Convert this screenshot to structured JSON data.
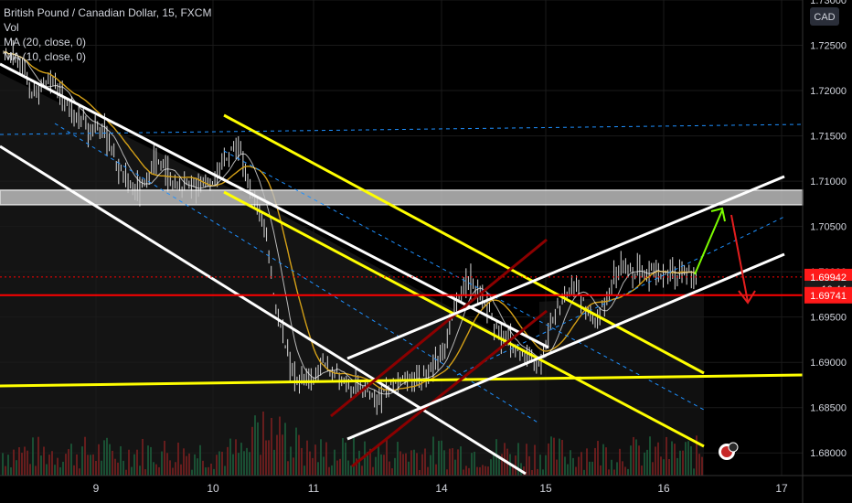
{
  "legend": {
    "title": "British Pound / Canadian Dollar, 15, FXCM",
    "vol": "Vol",
    "ma20": "MA (20, close, 0)",
    "ma10": "MA (10, close, 0)"
  },
  "currency": "CAD",
  "colors": {
    "background": "#000000",
    "text": "#d1d4dc",
    "grid": "#1a1a1a",
    "candle": "#d8d8d8",
    "ma20": "#d4a017",
    "ma10": "#ffffff",
    "yellow": "#ffff00",
    "white": "#ffffff",
    "darkred": "#8b0000",
    "red": "#ff0000",
    "dashed_blue": "#1e90ff",
    "green_arrow": "#7cfc00",
    "red_arrow": "#e41e1e",
    "label_red": "#ff1a1a",
    "volume_green": "#1b5e3b",
    "volume_red": "#7a1f1f"
  },
  "chart_data": {
    "type": "candlestick",
    "symbol": "GBP/CAD",
    "timeframe": "15",
    "ylim": [
      1.6775,
      1.73
    ],
    "y_ticks": [
      "1.73000",
      "1.72500",
      "1.72000",
      "1.71500",
      "1.71000",
      "1.70500",
      "1.70000",
      "1.69500",
      "1.69000",
      "1.68500",
      "1.68000"
    ],
    "x_ticks": [
      "9",
      "10",
      "11",
      "14",
      "15",
      "16",
      "17"
    ],
    "price_labels": [
      {
        "text": "1.69942",
        "value": 1.69942,
        "color": "#ff1a1a"
      },
      {
        "text": "10:44",
        "value": 1.6981,
        "color": "#1a1a1a"
      },
      {
        "text": "1.69741",
        "value": 1.69741,
        "color": "#ff1a1a"
      }
    ],
    "close_path": [
      [
        0,
        1.7245
      ],
      [
        1,
        1.724
      ],
      [
        2,
        1.722
      ],
      [
        3,
        1.7195
      ],
      [
        4,
        1.7205
      ],
      [
        5,
        1.7215
      ],
      [
        6,
        1.7195
      ],
      [
        7,
        1.718
      ],
      [
        8,
        1.717
      ],
      [
        9,
        1.716
      ],
      [
        10,
        1.7165
      ],
      [
        11,
        1.7145
      ],
      [
        12,
        1.712
      ],
      [
        13,
        1.71
      ],
      [
        14,
        1.709
      ],
      [
        15,
        1.7095
      ],
      [
        16,
        1.712
      ],
      [
        17,
        1.7115
      ],
      [
        18,
        1.71
      ],
      [
        19,
        1.709
      ],
      [
        20,
        1.7092
      ],
      [
        21,
        1.7095
      ],
      [
        22,
        1.71
      ],
      [
        23,
        1.711
      ],
      [
        24,
        1.7135
      ],
      [
        25,
        1.714
      ],
      [
        26,
        1.71
      ],
      [
        27,
        1.707
      ],
      [
        28,
        1.704
      ],
      [
        29,
        1.696
      ],
      [
        30,
        1.692
      ],
      [
        31,
        1.688
      ],
      [
        32,
        1.6885
      ],
      [
        33,
        1.688
      ],
      [
        34,
        1.69
      ],
      [
        35,
        1.689
      ],
      [
        36,
        1.688
      ],
      [
        37,
        1.687
      ],
      [
        38,
        1.6875
      ],
      [
        39,
        1.6865
      ],
      [
        40,
        1.686
      ],
      [
        41,
        1.6875
      ],
      [
        42,
        1.688
      ],
      [
        43,
        1.6878
      ],
      [
        44,
        1.6882
      ],
      [
        45,
        1.6885
      ],
      [
        46,
        1.69
      ],
      [
        47,
        1.692
      ],
      [
        48,
        1.696
      ],
      [
        49,
        1.698
      ],
      [
        50,
        1.699
      ],
      [
        51,
        1.697
      ],
      [
        52,
        1.695
      ],
      [
        53,
        1.693
      ],
      [
        54,
        1.692
      ],
      [
        55,
        1.691
      ],
      [
        56,
        1.6905
      ],
      [
        57,
        1.69
      ],
      [
        58,
        1.693
      ],
      [
        59,
        1.696
      ],
      [
        60,
        1.698
      ],
      [
        61,
        1.6985
      ],
      [
        62,
        1.696
      ],
      [
        63,
        1.6945
      ],
      [
        64,
        1.6965
      ],
      [
        65,
        1.6995
      ],
      [
        66,
        1.7005
      ],
      [
        67,
        1.6995
      ],
      [
        68,
        1.7
      ],
      [
        69,
        1.7005
      ],
      [
        70,
        1.6995
      ],
      [
        71,
        1.7002
      ],
      [
        72,
        1.7
      ],
      [
        73,
        1.6998
      ],
      [
        74,
        1.6994
      ]
    ],
    "annotations": {
      "support_zone": [
        1.7074,
        1.709
      ],
      "horizontal_yellow": "support line near 1.6880",
      "horizontal_red": 1.69741,
      "horizontal_dashed_blue": 1.716
    }
  }
}
